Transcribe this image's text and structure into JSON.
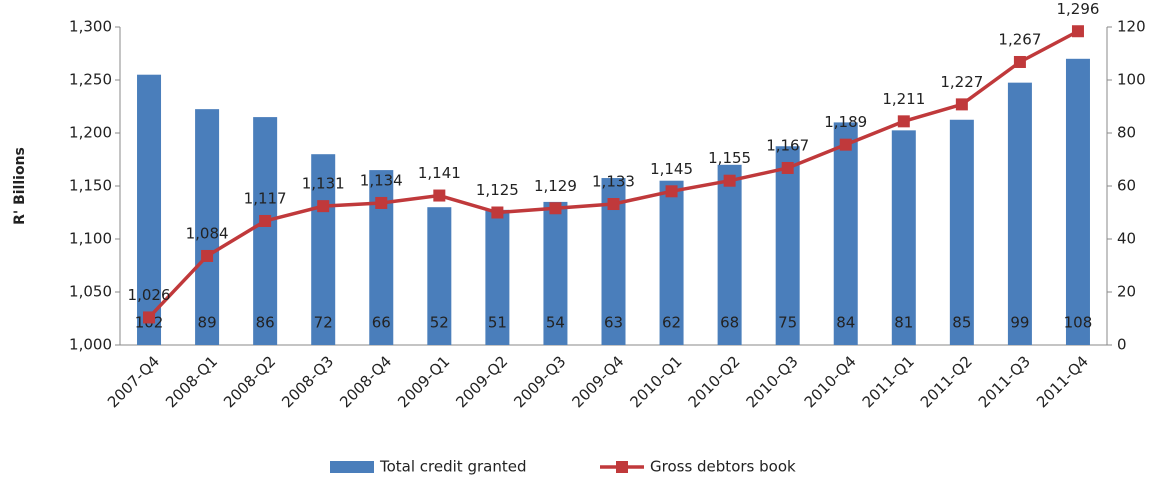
{
  "chart_data": {
    "type": "bar-line",
    "y_label": "R' Billions",
    "categories": [
      "2007-Q4",
      "2008-Q1",
      "2008-Q2",
      "2008-Q3",
      "2008-Q4",
      "2009-Q1",
      "2009-Q2",
      "2009-Q3",
      "2009-Q4",
      "2010-Q1",
      "2010-Q2",
      "2010-Q3",
      "2010-Q4",
      "2011-Q1",
      "2011-Q2",
      "2011-Q3",
      "2011-Q4"
    ],
    "series": [
      {
        "name": "Total credit granted",
        "type": "bar",
        "axis": "y2",
        "color": "#4a7ebb",
        "values": [
          102,
          89,
          86,
          72,
          66,
          52,
          51,
          54,
          63,
          62,
          68,
          75,
          84,
          81,
          85,
          99,
          108
        ]
      },
      {
        "name": "Gross debtors book",
        "type": "line",
        "axis": "y",
        "color": "#c0393b",
        "values": [
          1026,
          1084,
          1117,
          1131,
          1134,
          1141,
          1125,
          1129,
          1133,
          1145,
          1155,
          1167,
          1189,
          1211,
          1227,
          1267,
          1296
        ],
        "value_labels": [
          "1,026",
          "1,084",
          "1,117",
          "1,131",
          "1,134",
          "1,141",
          "1,125",
          "1,129",
          "1,133",
          "1,145",
          "1,155",
          "1,167",
          "1,189",
          "1,211",
          "1,227",
          "1,267",
          "1,296"
        ]
      }
    ],
    "ylim": [
      1000,
      1300
    ],
    "yticks": [
      {
        "value": 1000,
        "label": "1,000"
      },
      {
        "value": 1050,
        "label": "1,050"
      },
      {
        "value": 1100,
        "label": "1,100"
      },
      {
        "value": 1150,
        "label": "1,150"
      },
      {
        "value": 1200,
        "label": "1,200"
      },
      {
        "value": 1250,
        "label": "1,250"
      },
      {
        "value": 1300,
        "label": "1,300"
      }
    ],
    "y2lim": [
      0,
      120
    ],
    "y2ticks": [
      0,
      20,
      40,
      60,
      80,
      100,
      120
    ],
    "legend": "bottom"
  }
}
